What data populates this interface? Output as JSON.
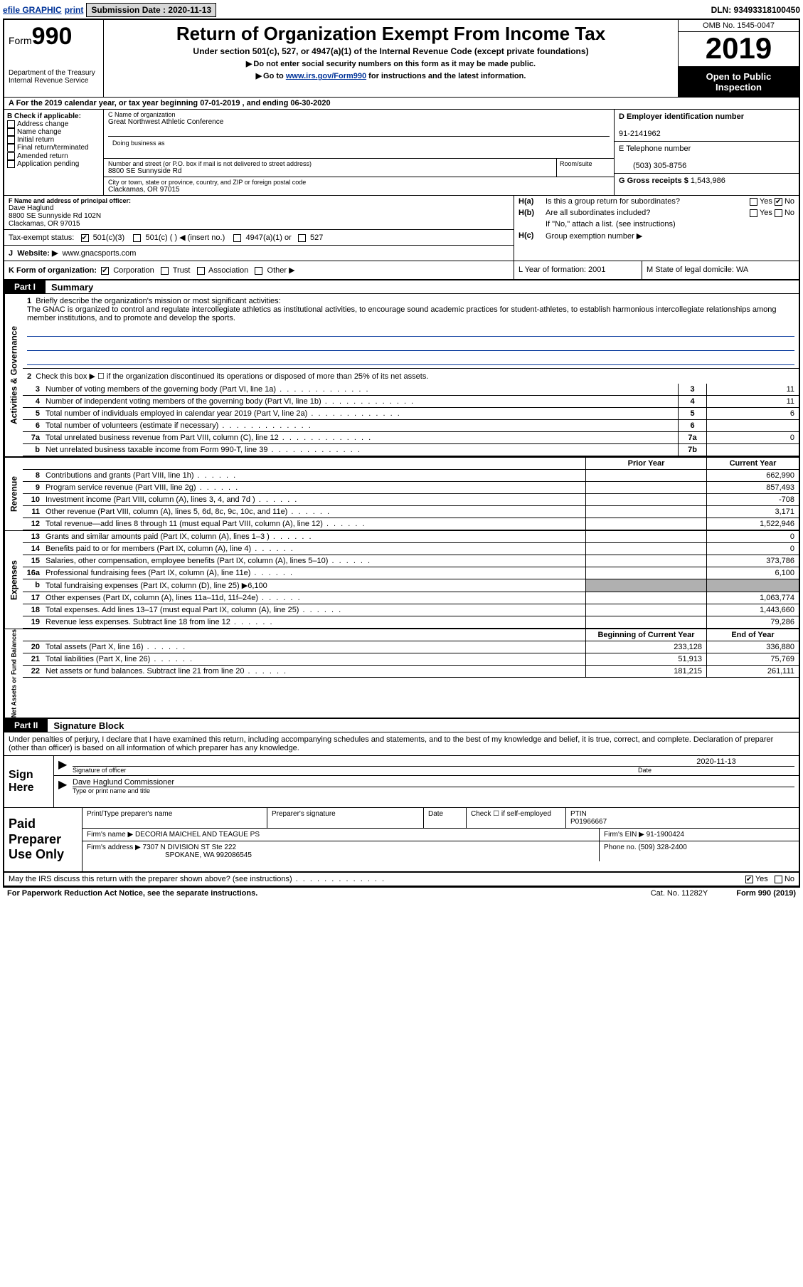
{
  "topbar": {
    "efile": "efile GRAPHIC",
    "print": "print",
    "sub_label": "Submission Date :",
    "sub_date": "2020-11-13",
    "dln": "DLN: 93493318100450"
  },
  "header": {
    "form_prefix": "Form",
    "form_num": "990",
    "dept1": "Department of the Treasury",
    "dept2": "Internal Revenue Service",
    "title": "Return of Organization Exempt From Income Tax",
    "subtitle": "Under section 501(c), 527, or 4947(a)(1) of the Internal Revenue Code (except private foundations)",
    "note1": "Do not enter social security numbers on this form as it may be made public.",
    "note2_pre": "Go to ",
    "note2_link": "www.irs.gov/Form990",
    "note2_post": " for instructions and the latest information.",
    "omb": "OMB No. 1545-0047",
    "year": "2019",
    "inspect1": "Open to Public",
    "inspect2": "Inspection"
  },
  "rowA": "A For the 2019 calendar year, or tax year beginning 07-01-2019    , and ending 06-30-2020",
  "colB": {
    "hdr": "B Check if applicable:",
    "items": [
      "Address change",
      "Name change",
      "Initial return",
      "Final return/terminated",
      "Amended return",
      "Application pending"
    ]
  },
  "name": {
    "c_lbl": "C Name of organization",
    "org": "Great Northwest Athletic Conference",
    "dba_lbl": "Doing business as",
    "addr_lbl": "Number and street (or P.O. box if mail is not delivered to street address)",
    "addr": "8800 SE Sunnyside Rd",
    "room_lbl": "Room/suite",
    "city_lbl": "City or town, state or province, country, and ZIP or foreign postal code",
    "city": "Clackamas, OR  97015"
  },
  "colD": {
    "d_lbl": "D Employer identification number",
    "ein": "91-2141962",
    "e_lbl": "E Telephone number",
    "tel": "(503) 305-8756",
    "g_lbl": "G Gross receipts $",
    "g_val": "1,543,986"
  },
  "rowF": {
    "lbl": "F Name and address of principal officer:",
    "name": "Dave Haglund",
    "addr1": "8800 SE Sunnyside Rd 102N",
    "addr2": "Clackamas, OR  97015"
  },
  "rowH": {
    "ha_lbl": "H(a)",
    "ha_txt": "Is this a group return for subordinates?",
    "hb_lbl": "H(b)",
    "hb_txt": "Are all subordinates included?",
    "hb_note": "If \"No,\" attach a list. (see instructions)",
    "hc_lbl": "H(c)",
    "hc_txt": "Group exemption number ▶",
    "yes": "Yes",
    "no": "No"
  },
  "rowTax": {
    "lbl": "Tax-exempt status:",
    "o1": "501(c)(3)",
    "o2": "501(c) (   ) ◀ (insert no.)",
    "o3": "4947(a)(1) or",
    "o4": "527"
  },
  "rowJ": {
    "lbl": "J",
    "web_lbl": "Website: ▶",
    "web": "www.gnacsports.com"
  },
  "rowK": {
    "lbl": "K Form of organization:",
    "corp": "Corporation",
    "trust": "Trust",
    "assoc": "Association",
    "other": "Other ▶"
  },
  "rowL": {
    "txt": "L Year of formation: 2001"
  },
  "rowM": {
    "txt": "M State of legal domicile: WA"
  },
  "part1": {
    "tab": "Part I",
    "title": "Summary"
  },
  "summary": {
    "q1_lbl": "1",
    "q1_txt": "Briefly describe the organization's mission or most significant activities:",
    "q1_desc": "The GNAC is organized to control and regulate intercollegiate athletics as institutional activities, to encourage sound academic practices for student-athletes, to establish harmonious intercollegiate relationships among member institutions, and to promote and develop the sports.",
    "q2_lbl": "2",
    "q2_txt": "Check this box ▶ ☐ if the organization discontinued its operations or disposed of more than 25% of its net assets.",
    "rows": [
      {
        "n": "3",
        "t": "Number of voting members of the governing body (Part VI, line 1a)",
        "bn": "3",
        "bv": "11"
      },
      {
        "n": "4",
        "t": "Number of independent voting members of the governing body (Part VI, line 1b)",
        "bn": "4",
        "bv": "11"
      },
      {
        "n": "5",
        "t": "Total number of individuals employed in calendar year 2019 (Part V, line 2a)",
        "bn": "5",
        "bv": "6"
      },
      {
        "n": "6",
        "t": "Total number of volunteers (estimate if necessary)",
        "bn": "6",
        "bv": ""
      },
      {
        "n": "7a",
        "t": "Total unrelated business revenue from Part VIII, column (C), line 12",
        "bn": "7a",
        "bv": "0"
      },
      {
        "n": "b",
        "t": "Net unrelated business taxable income from Form 990-T, line 39",
        "bn": "7b",
        "bv": ""
      }
    ]
  },
  "fin_hdr": {
    "c1": "Prior Year",
    "c2": "Current Year"
  },
  "revenue": {
    "side": "Revenue",
    "rows": [
      {
        "n": "8",
        "t": "Contributions and grants (Part VIII, line 1h)",
        "c1": "",
        "c2": "662,990"
      },
      {
        "n": "9",
        "t": "Program service revenue (Part VIII, line 2g)",
        "c1": "",
        "c2": "857,493"
      },
      {
        "n": "10",
        "t": "Investment income (Part VIII, column (A), lines 3, 4, and 7d )",
        "c1": "",
        "c2": "-708"
      },
      {
        "n": "11",
        "t": "Other revenue (Part VIII, column (A), lines 5, 6d, 8c, 9c, 10c, and 11e)",
        "c1": "",
        "c2": "3,171"
      },
      {
        "n": "12",
        "t": "Total revenue—add lines 8 through 11 (must equal Part VIII, column (A), line 12)",
        "c1": "",
        "c2": "1,522,946"
      }
    ]
  },
  "expenses": {
    "side": "Expenses",
    "rows": [
      {
        "n": "13",
        "t": "Grants and similar amounts paid (Part IX, column (A), lines 1–3 )",
        "c1": "",
        "c2": "0"
      },
      {
        "n": "14",
        "t": "Benefits paid to or for members (Part IX, column (A), line 4)",
        "c1": "",
        "c2": "0"
      },
      {
        "n": "15",
        "t": "Salaries, other compensation, employee benefits (Part IX, column (A), lines 5–10)",
        "c1": "",
        "c2": "373,786"
      },
      {
        "n": "16a",
        "t": "Professional fundraising fees (Part IX, column (A), line 11e)",
        "c1": "",
        "c2": "6,100"
      },
      {
        "n": "b",
        "t": "Total fundraising expenses (Part IX, column (D), line 25) ▶6,100",
        "shade": true
      },
      {
        "n": "17",
        "t": "Other expenses (Part IX, column (A), lines 11a–11d, 11f–24e)",
        "c1": "",
        "c2": "1,063,774"
      },
      {
        "n": "18",
        "t": "Total expenses. Add lines 13–17 (must equal Part IX, column (A), line 25)",
        "c1": "",
        "c2": "1,443,660"
      },
      {
        "n": "19",
        "t": "Revenue less expenses. Subtract line 18 from line 12",
        "c1": "",
        "c2": "79,286"
      }
    ]
  },
  "net_hdr": {
    "c1": "Beginning of Current Year",
    "c2": "End of Year"
  },
  "net": {
    "side": "Net Assets or Fund Balances",
    "rows": [
      {
        "n": "20",
        "t": "Total assets (Part X, line 16)",
        "c1": "233,128",
        "c2": "336,880"
      },
      {
        "n": "21",
        "t": "Total liabilities (Part X, line 26)",
        "c1": "51,913",
        "c2": "75,769"
      },
      {
        "n": "22",
        "t": "Net assets or fund balances. Subtract line 21 from line 20",
        "c1": "181,215",
        "c2": "261,111"
      }
    ]
  },
  "part2": {
    "tab": "Part II",
    "title": "Signature Block"
  },
  "sig": {
    "decl": "Under penalties of perjury, I declare that I have examined this return, including accompanying schedules and statements, and to the best of my knowledge and belief, it is true, correct, and complete. Declaration of preparer (other than officer) is based on all information of which preparer has any knowledge.",
    "sign_here": "Sign Here",
    "sig_lbl": "Signature of officer",
    "date_lbl": "Date",
    "date_val": "2020-11-13",
    "name_val": "Dave Haglund Commissioner",
    "name_lbl": "Type or print name and title"
  },
  "prep": {
    "left": "Paid Preparer Use Only",
    "r1_c1": "Print/Type preparer's name",
    "r1_c2": "Preparer's signature",
    "r1_c3": "Date",
    "r1_c4a": "Check ☐ if self-employed",
    "r1_c5a": "PTIN",
    "r1_c5b": "P01966667",
    "r2_lbl": "Firm's name    ▶",
    "r2_val": "DECORIA MAICHEL AND TEAGUE PS",
    "r2_ein_lbl": "Firm's EIN ▶",
    "r2_ein": "91-1900424",
    "r3_lbl": "Firm's address ▶",
    "r3_val1": "7307 N DIVISION ST Ste 222",
    "r3_val2": "SPOKANE, WA  992086545",
    "r3_ph_lbl": "Phone no.",
    "r3_ph": "(509) 328-2400"
  },
  "footer": {
    "q": "May the IRS discuss this return with the preparer shown above? (see instructions)",
    "yes": "Yes",
    "no": "No",
    "pra": "For Paperwork Reduction Act Notice, see the separate instructions.",
    "cat": "Cat. No. 11282Y",
    "form": "Form 990 (2019)"
  },
  "side_ag": "Activities & Governance"
}
